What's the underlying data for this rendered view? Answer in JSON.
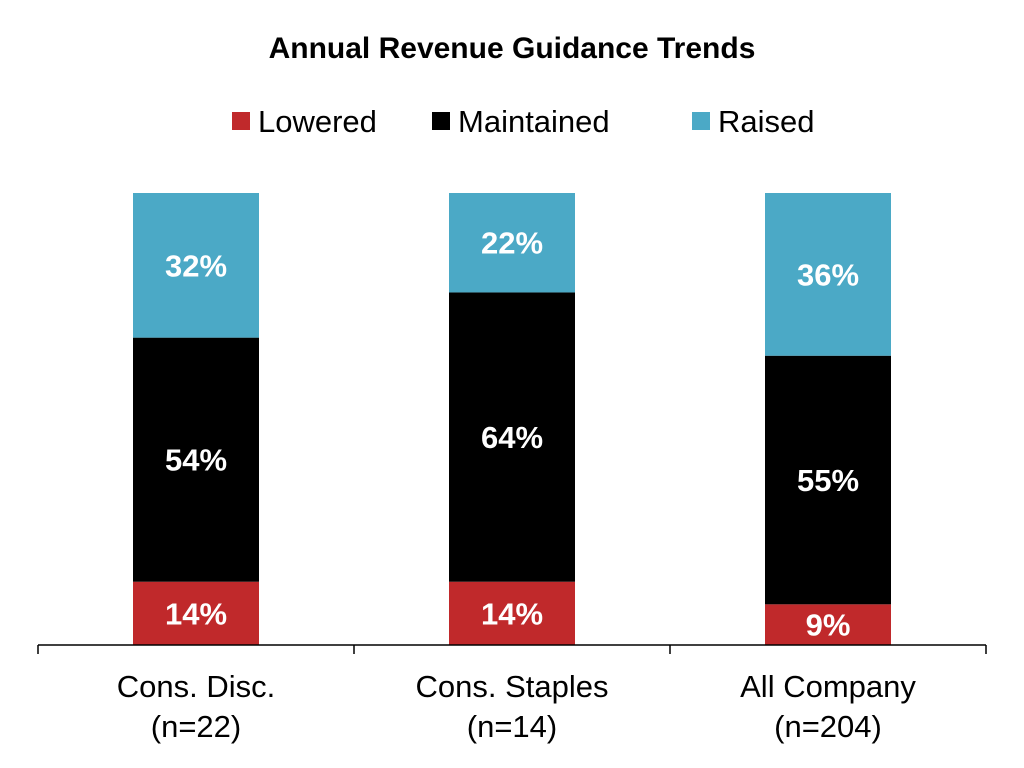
{
  "chart_data": {
    "type": "bar",
    "stacked": true,
    "title": "Annual Revenue Guidance Trends",
    "categories": [
      [
        "Cons. Disc.",
        "(n=22)"
      ],
      [
        "Cons. Staples",
        "(n=14)"
      ],
      [
        "All Company",
        "(n=204)"
      ]
    ],
    "series": [
      {
        "name": "Lowered",
        "color": "#c0292b",
        "values": [
          14,
          14,
          9
        ],
        "labels": [
          "14%",
          "14%",
          "9%"
        ]
      },
      {
        "name": "Maintained",
        "color": "#000000",
        "values": [
          54,
          64,
          55
        ],
        "labels": [
          "54%",
          "64%",
          "55%"
        ]
      },
      {
        "name": "Raised",
        "color": "#4ba9c6",
        "values": [
          32,
          22,
          36
        ],
        "labels": [
          "32%",
          "22%",
          "36%"
        ]
      }
    ],
    "ylim": [
      0,
      100
    ],
    "grid": false,
    "legend_position": "top"
  }
}
